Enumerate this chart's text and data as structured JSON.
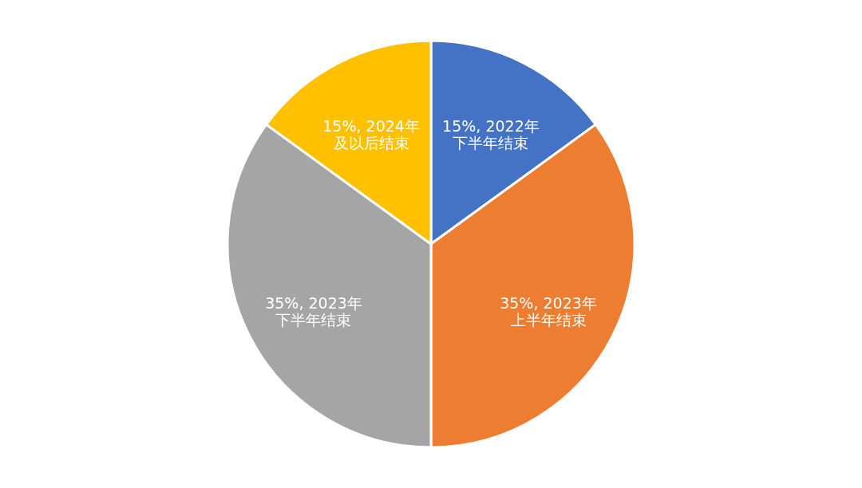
{
  "chart_data": {
    "type": "pie",
    "categories": [
      "2022年下半年结束",
      "2023年上半年结束",
      "2023年下半年结束",
      "2024年及以后结束"
    ],
    "values": [
      15,
      35,
      35,
      15
    ],
    "colors": [
      "#4472c4",
      "#ed7d31",
      "#a5a5a5",
      "#ffc000"
    ],
    "value_labels": [
      "15%,",
      "35%,",
      "35%,",
      "15%,"
    ],
    "legend": false
  }
}
